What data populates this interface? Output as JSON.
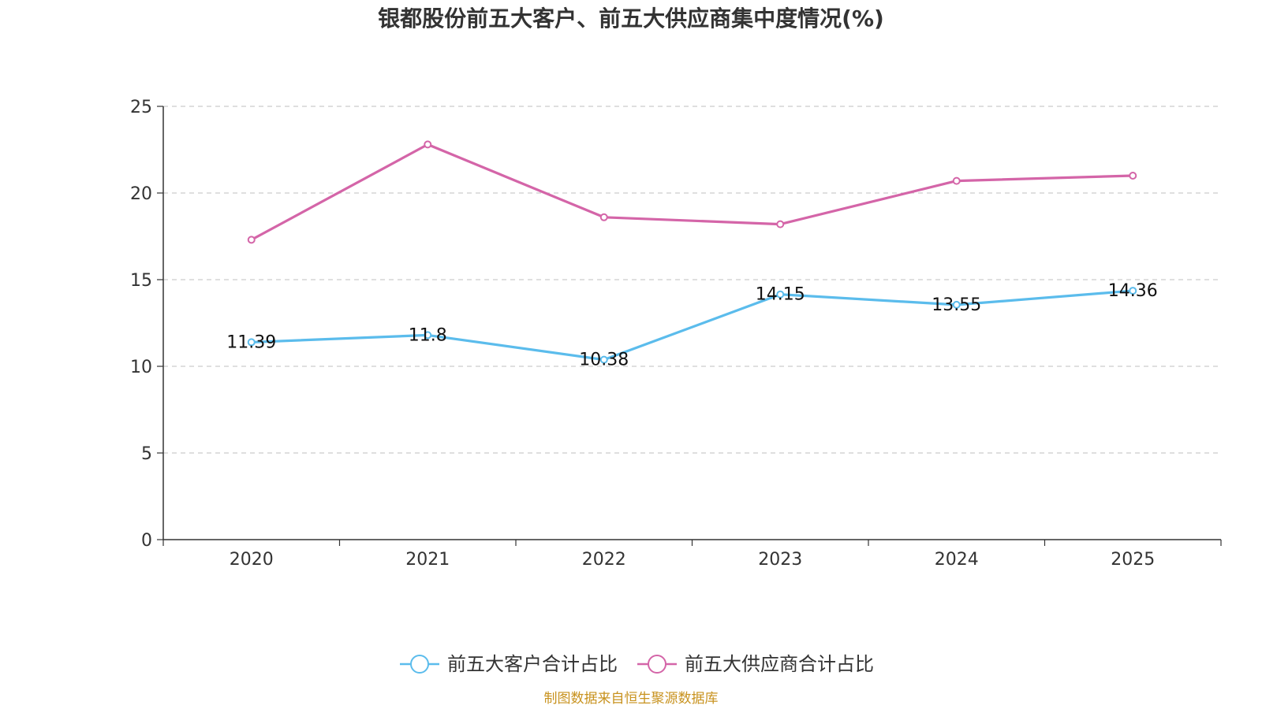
{
  "chart_data": {
    "type": "line",
    "title": "银都股份前五大客户、前五大供应商集中度情况(%)",
    "categories": [
      "2020",
      "2021",
      "2022",
      "2023",
      "2024",
      "2025"
    ],
    "ylim": [
      0,
      25
    ],
    "yticks": [
      0,
      5,
      10,
      15,
      20,
      25
    ],
    "grid": true,
    "legend_position": "bottom",
    "series": [
      {
        "name": "前五大客户合计占比",
        "color": "#5bbcec",
        "values": [
          11.39,
          11.8,
          10.38,
          14.15,
          13.55,
          14.36
        ],
        "labels": [
          "11.39",
          "11.8",
          "10.38",
          "14.15",
          "13.55",
          "14.36"
        ],
        "show_labels": true
      },
      {
        "name": "前五大供应商合计占比",
        "color": "#d465a8",
        "values": [
          17.3,
          22.8,
          18.6,
          18.2,
          20.7,
          21.0
        ],
        "show_labels": false
      }
    ],
    "source": "制图数据来自恒生聚源数据库"
  }
}
